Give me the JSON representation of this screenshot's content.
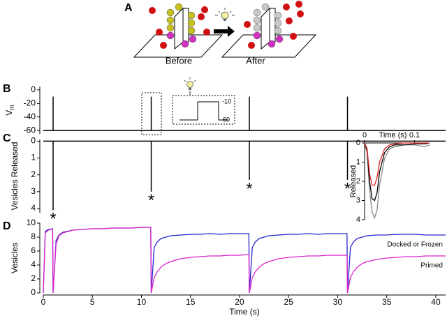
{
  "diagram": {
    "label": "A",
    "before": "Before",
    "after": "After"
  },
  "chart_data": [
    {
      "type": "stem",
      "label": "B",
      "ylabel": "V",
      "ylabel_sub": "m",
      "x": [
        1,
        11,
        21,
        31
      ],
      "values": [
        -10,
        -10,
        -10,
        -10
      ],
      "baseline": -60,
      "color": "#000000",
      "xlim": [
        0,
        41
      ],
      "ylim": [
        -65,
        5
      ],
      "yticks": [
        0,
        -20,
        -40,
        -60
      ],
      "stimulus": [
        -10,
        -60
      ]
    },
    {
      "type": "stem",
      "label": "C",
      "ylabel": "Vesicles Released",
      "x": [
        1,
        11,
        21,
        31
      ],
      "values": [
        4.1,
        3.0,
        2.3,
        2.3
      ],
      "baseline": 0,
      "color": "#000000",
      "inverted": true,
      "xlim": [
        0,
        41
      ],
      "ylim": [
        -0.1,
        4.25
      ],
      "yticks": [
        0,
        1,
        2,
        3,
        4
      ],
      "annotations": [
        {
          "text": "*",
          "color": "#999999"
        },
        {
          "text": "*",
          "color": "#e02020"
        },
        {
          "text": "*",
          "color": "#000000"
        },
        {
          "text": "*",
          "color": "#000000"
        }
      ]
    },
    {
      "type": "line",
      "xlabel": "Time (s)",
      "ylabel": "Released",
      "inverted": true,
      "x": [
        0,
        0.005,
        0.01,
        0.015,
        0.02,
        0.025,
        0.03,
        0.04,
        0.05,
        0.06,
        0.08,
        0.1,
        0.12,
        0.13
      ],
      "series": [
        {
          "color": "#888888",
          "values": [
            0,
            0.5,
            2.5,
            3.6,
            3.9,
            3.5,
            2.2,
            0.8,
            0.3,
            0.2,
            0.1,
            0.1,
            0.2,
            0.1
          ]
        },
        {
          "color": "#000000",
          "values": [
            0,
            0.4,
            2.0,
            2.9,
            3.0,
            2.6,
            1.5,
            0.5,
            0.2,
            0.1,
            0.1,
            0.05,
            0.05,
            0
          ]
        },
        {
          "color": "#e02020",
          "values": [
            0,
            0.3,
            1.6,
            2.2,
            2.2,
            1.8,
            1.0,
            0.3,
            0.1,
            0.05,
            0,
            0,
            0,
            0
          ]
        }
      ],
      "xlim": [
        0,
        0.13
      ],
      "ylim": [
        0,
        4
      ],
      "xticks": [
        0,
        0.1
      ],
      "yticks": [
        0,
        1,
        2,
        3,
        4
      ]
    },
    {
      "type": "line",
      "label": "D",
      "xlabel": "Time (s)",
      "ylabel": "Vesicles",
      "x": [
        0,
        0.2,
        0.5,
        0.95,
        1,
        1.3,
        1.6,
        2,
        3,
        4,
        5,
        6,
        7,
        8,
        9,
        10,
        10.95,
        11,
        11.3,
        11.6,
        12,
        12.5,
        13,
        14,
        15,
        16,
        17,
        18,
        19,
        20,
        20.95,
        21,
        21.3,
        21.6,
        22,
        22.5,
        23,
        24,
        25,
        26,
        27,
        28,
        29,
        30,
        30.95,
        31,
        31.3,
        31.6,
        32,
        32.5,
        33,
        34,
        35,
        36,
        37,
        38,
        39,
        40,
        41
      ],
      "series": [
        {
          "name": "Docked or Frozen",
          "color": "#2222cc",
          "values": [
            0,
            8.8,
            9.1,
            9.2,
            0,
            7.5,
            8.3,
            8.7,
            9.0,
            9.1,
            9.2,
            9.2,
            9.3,
            9.3,
            9.3,
            9.4,
            9.4,
            0,
            6.5,
            7.3,
            7.8,
            8.0,
            8.2,
            8.3,
            8.4,
            8.4,
            8.5,
            8.4,
            8.5,
            8.5,
            8.5,
            0,
            6.5,
            7.3,
            7.8,
            8.0,
            8.2,
            8.3,
            8.4,
            8.4,
            8.5,
            8.4,
            8.5,
            8.5,
            8.5,
            0,
            6.5,
            7.3,
            7.8,
            8.0,
            8.2,
            8.3,
            8.3,
            8.4,
            8.4,
            8.4,
            8.3,
            8.3,
            8.3
          ]
        },
        {
          "name": "Primed",
          "color": "#dd22cc",
          "values": [
            0,
            8.6,
            9.0,
            9.2,
            0,
            7.0,
            8.2,
            8.6,
            9.0,
            9.1,
            9.2,
            9.2,
            9.3,
            9.3,
            9.3,
            9.4,
            9.4,
            0,
            2.2,
            3.0,
            3.7,
            4.2,
            4.5,
            4.9,
            5.1,
            5.2,
            5.3,
            5.3,
            5.4,
            5.4,
            5.5,
            0,
            2.2,
            3.0,
            3.7,
            4.2,
            4.5,
            4.9,
            5.1,
            5.2,
            5.3,
            5.3,
            5.4,
            5.4,
            5.4,
            0,
            2.2,
            3.0,
            3.7,
            4.2,
            4.5,
            4.8,
            5.0,
            5.1,
            5.2,
            5.2,
            5.3,
            5.3,
            5.3
          ]
        }
      ],
      "xlim": [
        0,
        41
      ],
      "ylim": [
        0,
        10
      ],
      "xticks": [
        0,
        5,
        10,
        15,
        20,
        25,
        30,
        35,
        40
      ],
      "yticks": [
        0,
        2,
        4,
        6,
        8,
        10
      ]
    }
  ]
}
